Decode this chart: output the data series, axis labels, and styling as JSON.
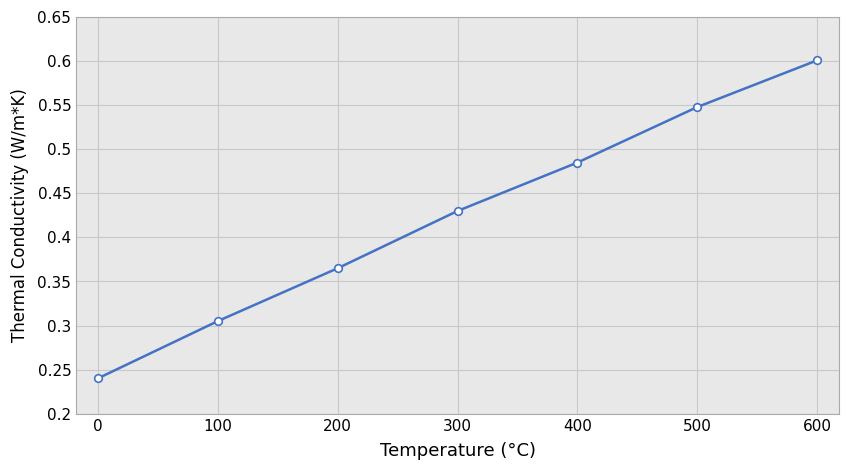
{
  "x": [
    0,
    100,
    200,
    300,
    400,
    500,
    600
  ],
  "y": [
    0.24,
    0.305,
    0.365,
    0.43,
    0.485,
    0.548,
    0.601
  ],
  "line_color": "#4472C4",
  "marker_color": "#4472C4",
  "marker_style": "o",
  "marker_size": 5.5,
  "marker_facecolor": "white",
  "line_width": 1.8,
  "xlabel": "Temperature (°C)",
  "ylabel": "Thermal Conductivity (W/m*K)",
  "xlim": [
    -18,
    618
  ],
  "ylim": [
    0.2,
    0.65
  ],
  "xticks": [
    0,
    100,
    200,
    300,
    400,
    500,
    600
  ],
  "yticks": [
    0.2,
    0.25,
    0.3,
    0.35,
    0.4,
    0.45,
    0.5,
    0.55,
    0.6,
    0.65
  ],
  "grid_color": "#C8C8C8",
  "background_color": "#E8E8E8",
  "outer_background": "#FFFFFF",
  "xlabel_fontsize": 13,
  "ylabel_fontsize": 12,
  "tick_fontsize": 11,
  "spine_color": "#AAAAAA",
  "fig_width": 8.5,
  "fig_height": 4.71,
  "dpi": 100
}
